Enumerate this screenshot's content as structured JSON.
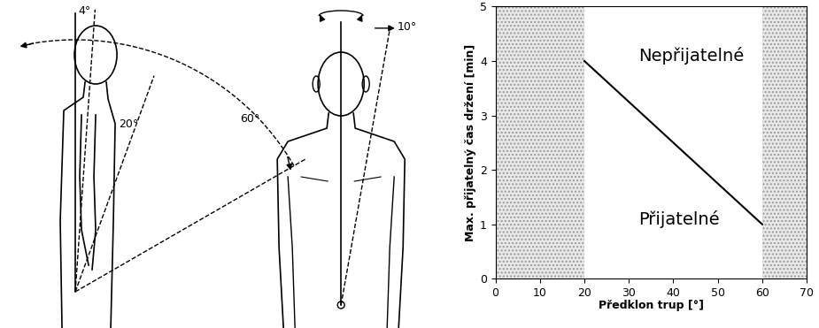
{
  "chart_data": {
    "type": "line",
    "x": [
      20,
      60
    ],
    "values": [
      4,
      1
    ],
    "color": "#000000",
    "xlabel": "Předklon trup [°]",
    "ylabel": "Max. přijatelný čas držení [min]",
    "xlim": [
      0,
      70
    ],
    "xticks": [
      0,
      10,
      20,
      30,
      40,
      50,
      60,
      70
    ],
    "ylim": [
      0,
      5
    ],
    "yticks": [
      0,
      1,
      2,
      3,
      4,
      5
    ],
    "shaded_x_ranges": [
      [
        0,
        20
      ],
      [
        60,
        70
      ]
    ],
    "annotations": [
      "Nepřijatelné",
      "Přijatelné"
    ],
    "grid": false
  },
  "diagram": {
    "side_view_angles": [
      "4°",
      "20°",
      "60°"
    ],
    "front_view_angles": [
      "10°"
    ]
  }
}
